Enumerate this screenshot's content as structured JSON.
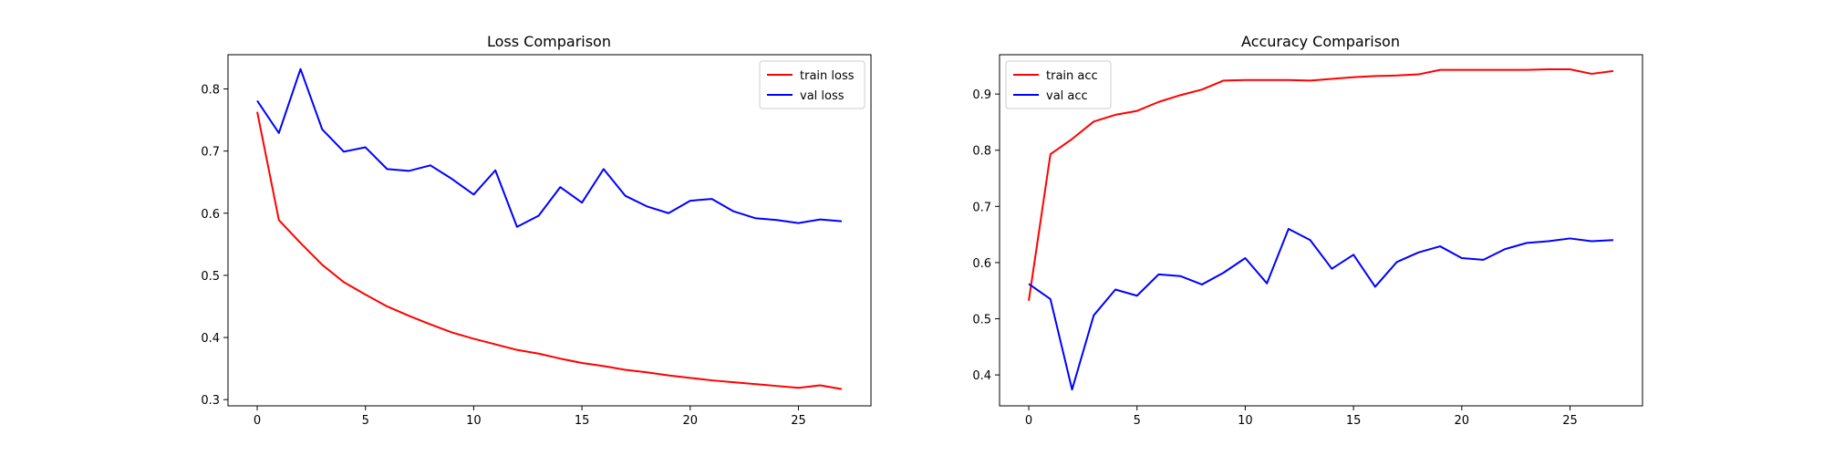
{
  "chart_data": [
    {
      "type": "line",
      "title": "Loss Comparison",
      "xlabel": "",
      "ylabel": "",
      "xlim": [
        -1.35,
        28.35
      ],
      "ylim": [
        0.29,
        0.855
      ],
      "xticks": [
        0,
        5,
        10,
        15,
        20,
        25
      ],
      "yticks": [
        0.3,
        0.4,
        0.5,
        0.6,
        0.7,
        0.8
      ],
      "legend_position": "top-right",
      "grid": false,
      "series": [
        {
          "name": "train loss",
          "color": "#ff0000",
          "x": [
            0,
            1,
            2,
            3,
            4,
            5,
            6,
            7,
            8,
            9,
            10,
            11,
            12,
            13,
            14,
            15,
            16,
            17,
            18,
            19,
            20,
            21,
            22,
            23,
            24,
            25,
            26,
            27
          ],
          "values": [
            0.763,
            0.589,
            0.552,
            0.517,
            0.489,
            0.469,
            0.45,
            0.435,
            0.421,
            0.408,
            0.398,
            0.389,
            0.38,
            0.374,
            0.366,
            0.359,
            0.354,
            0.348,
            0.344,
            0.339,
            0.335,
            0.331,
            0.328,
            0.325,
            0.322,
            0.319,
            0.323,
            0.317
          ]
        },
        {
          "name": "val loss",
          "color": "#0000ff",
          "x": [
            0,
            1,
            2,
            3,
            4,
            5,
            6,
            7,
            8,
            9,
            10,
            11,
            12,
            13,
            14,
            15,
            16,
            17,
            18,
            19,
            20,
            21,
            22,
            23,
            24,
            25,
            26,
            27
          ],
          "values": [
            0.781,
            0.729,
            0.832,
            0.735,
            0.699,
            0.706,
            0.671,
            0.668,
            0.677,
            0.655,
            0.63,
            0.669,
            0.578,
            0.596,
            0.642,
            0.617,
            0.671,
            0.628,
            0.611,
            0.6,
            0.62,
            0.623,
            0.603,
            0.592,
            0.589,
            0.584,
            0.59,
            0.587
          ]
        }
      ]
    },
    {
      "type": "line",
      "title": "Accuracy Comparison",
      "xlabel": "",
      "ylabel": "",
      "xlim": [
        -1.35,
        28.35
      ],
      "ylim": [
        0.345,
        0.97
      ],
      "xticks": [
        0,
        5,
        10,
        15,
        20,
        25
      ],
      "yticks": [
        0.4,
        0.5,
        0.6,
        0.7,
        0.8,
        0.9
      ],
      "legend_position": "top-left",
      "grid": false,
      "series": [
        {
          "name": "train acc",
          "color": "#ff0000",
          "x": [
            0,
            1,
            2,
            3,
            4,
            5,
            6,
            7,
            8,
            9,
            10,
            11,
            12,
            13,
            14,
            15,
            16,
            17,
            18,
            19,
            20,
            21,
            22,
            23,
            24,
            25,
            26,
            27
          ],
          "values": [
            0.532,
            0.793,
            0.82,
            0.851,
            0.863,
            0.87,
            0.886,
            0.898,
            0.908,
            0.924,
            0.925,
            0.925,
            0.925,
            0.924,
            0.927,
            0.93,
            0.932,
            0.933,
            0.935,
            0.943,
            0.943,
            0.943,
            0.943,
            0.943,
            0.944,
            0.944,
            0.936,
            0.941
          ]
        },
        {
          "name": "val acc",
          "color": "#0000ff",
          "x": [
            0,
            1,
            2,
            3,
            4,
            5,
            6,
            7,
            8,
            9,
            10,
            11,
            12,
            13,
            14,
            15,
            16,
            17,
            18,
            19,
            20,
            21,
            22,
            23,
            24,
            25,
            26,
            27
          ],
          "values": [
            0.562,
            0.535,
            0.374,
            0.506,
            0.552,
            0.541,
            0.579,
            0.576,
            0.561,
            0.582,
            0.608,
            0.563,
            0.66,
            0.64,
            0.589,
            0.614,
            0.557,
            0.601,
            0.618,
            0.629,
            0.608,
            0.605,
            0.624,
            0.635,
            0.638,
            0.643,
            0.638,
            0.64
          ]
        }
      ]
    }
  ]
}
